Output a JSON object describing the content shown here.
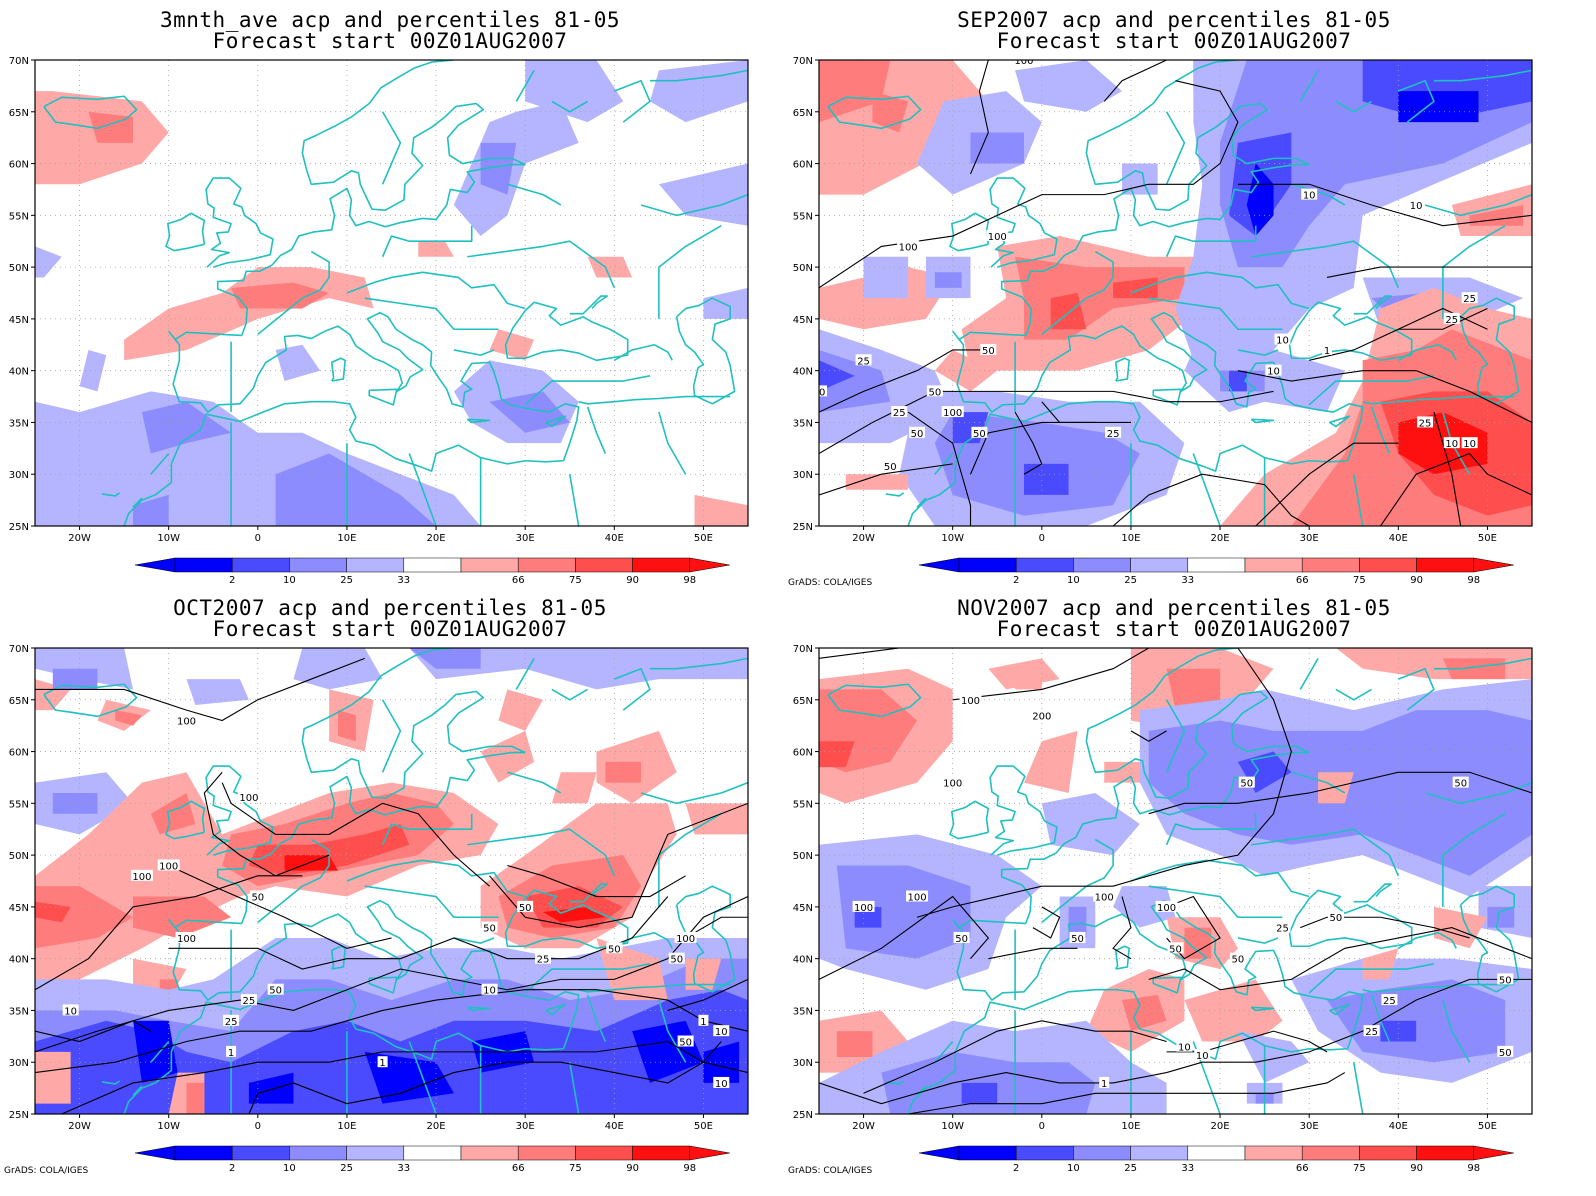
{
  "colors": {
    "coast": "#20c0c0",
    "blue_dark": "#0000ff",
    "blue_mid": "#4a4aff",
    "blue_light": "#8c8cff",
    "blue_pale": "#b4b4ff",
    "red_pale": "#ffa8a8",
    "red_light": "#ff7c7c",
    "red_mid": "#ff4e4e",
    "red_dark": "#ff1010",
    "contour": "#000000"
  },
  "lat_labels": [
    "70N",
    "65N",
    "60N",
    "55N",
    "50N",
    "45N",
    "40N",
    "35N",
    "30N",
    "25N"
  ],
  "lon_labels": [
    "20W",
    "10W",
    "0",
    "10E",
    "20E",
    "30E",
    "40E",
    "50E"
  ],
  "colorbar_labels": [
    "2",
    "10",
    "25",
    "33",
    "66",
    "75",
    "90",
    "98"
  ],
  "credit": "GrADS: COLA/IGES",
  "panels": [
    {
      "title1": "3mnth_ave acp and percentiles 81-05",
      "title2": "Forecast start 00Z01AUG2007",
      "show_credit": false,
      "contour_labels": []
    },
    {
      "title1": "SEP2007 acp and percentiles 81-05",
      "title2": "Forecast start 00Z01AUG2007",
      "show_credit": true,
      "contour_labels": [
        "100",
        "100",
        "100",
        "50",
        "50",
        "100",
        "25",
        "50",
        "25",
        "50",
        "50",
        "25",
        "10",
        "10",
        "10",
        "25",
        "25",
        "10",
        "10",
        "1",
        "25",
        "10",
        "10"
      ]
    },
    {
      "title1": "OCT2007 acp and percentiles 81-05",
      "title2": "Forecast start 00Z01AUG2007",
      "show_credit": true,
      "contour_labels": [
        "100",
        "100",
        "100",
        "100",
        "100",
        "50",
        "50",
        "50",
        "50",
        "50",
        "100",
        "25",
        "10",
        "25",
        "10",
        "1",
        "1",
        "50",
        "25",
        "10",
        "1",
        "50",
        "10"
      ]
    },
    {
      "title1": "NOV2007 acp and percentiles 81-05",
      "title2": "Forecast start 00Z01AUG2007",
      "show_credit": true,
      "contour_labels": [
        "100",
        "200",
        "100",
        "50",
        "50",
        "100",
        "100",
        "100",
        "50",
        "50",
        "100",
        "50",
        "50",
        "50",
        "25",
        "10",
        "1",
        "10",
        "25",
        "25",
        "50",
        "50"
      ]
    }
  ]
}
